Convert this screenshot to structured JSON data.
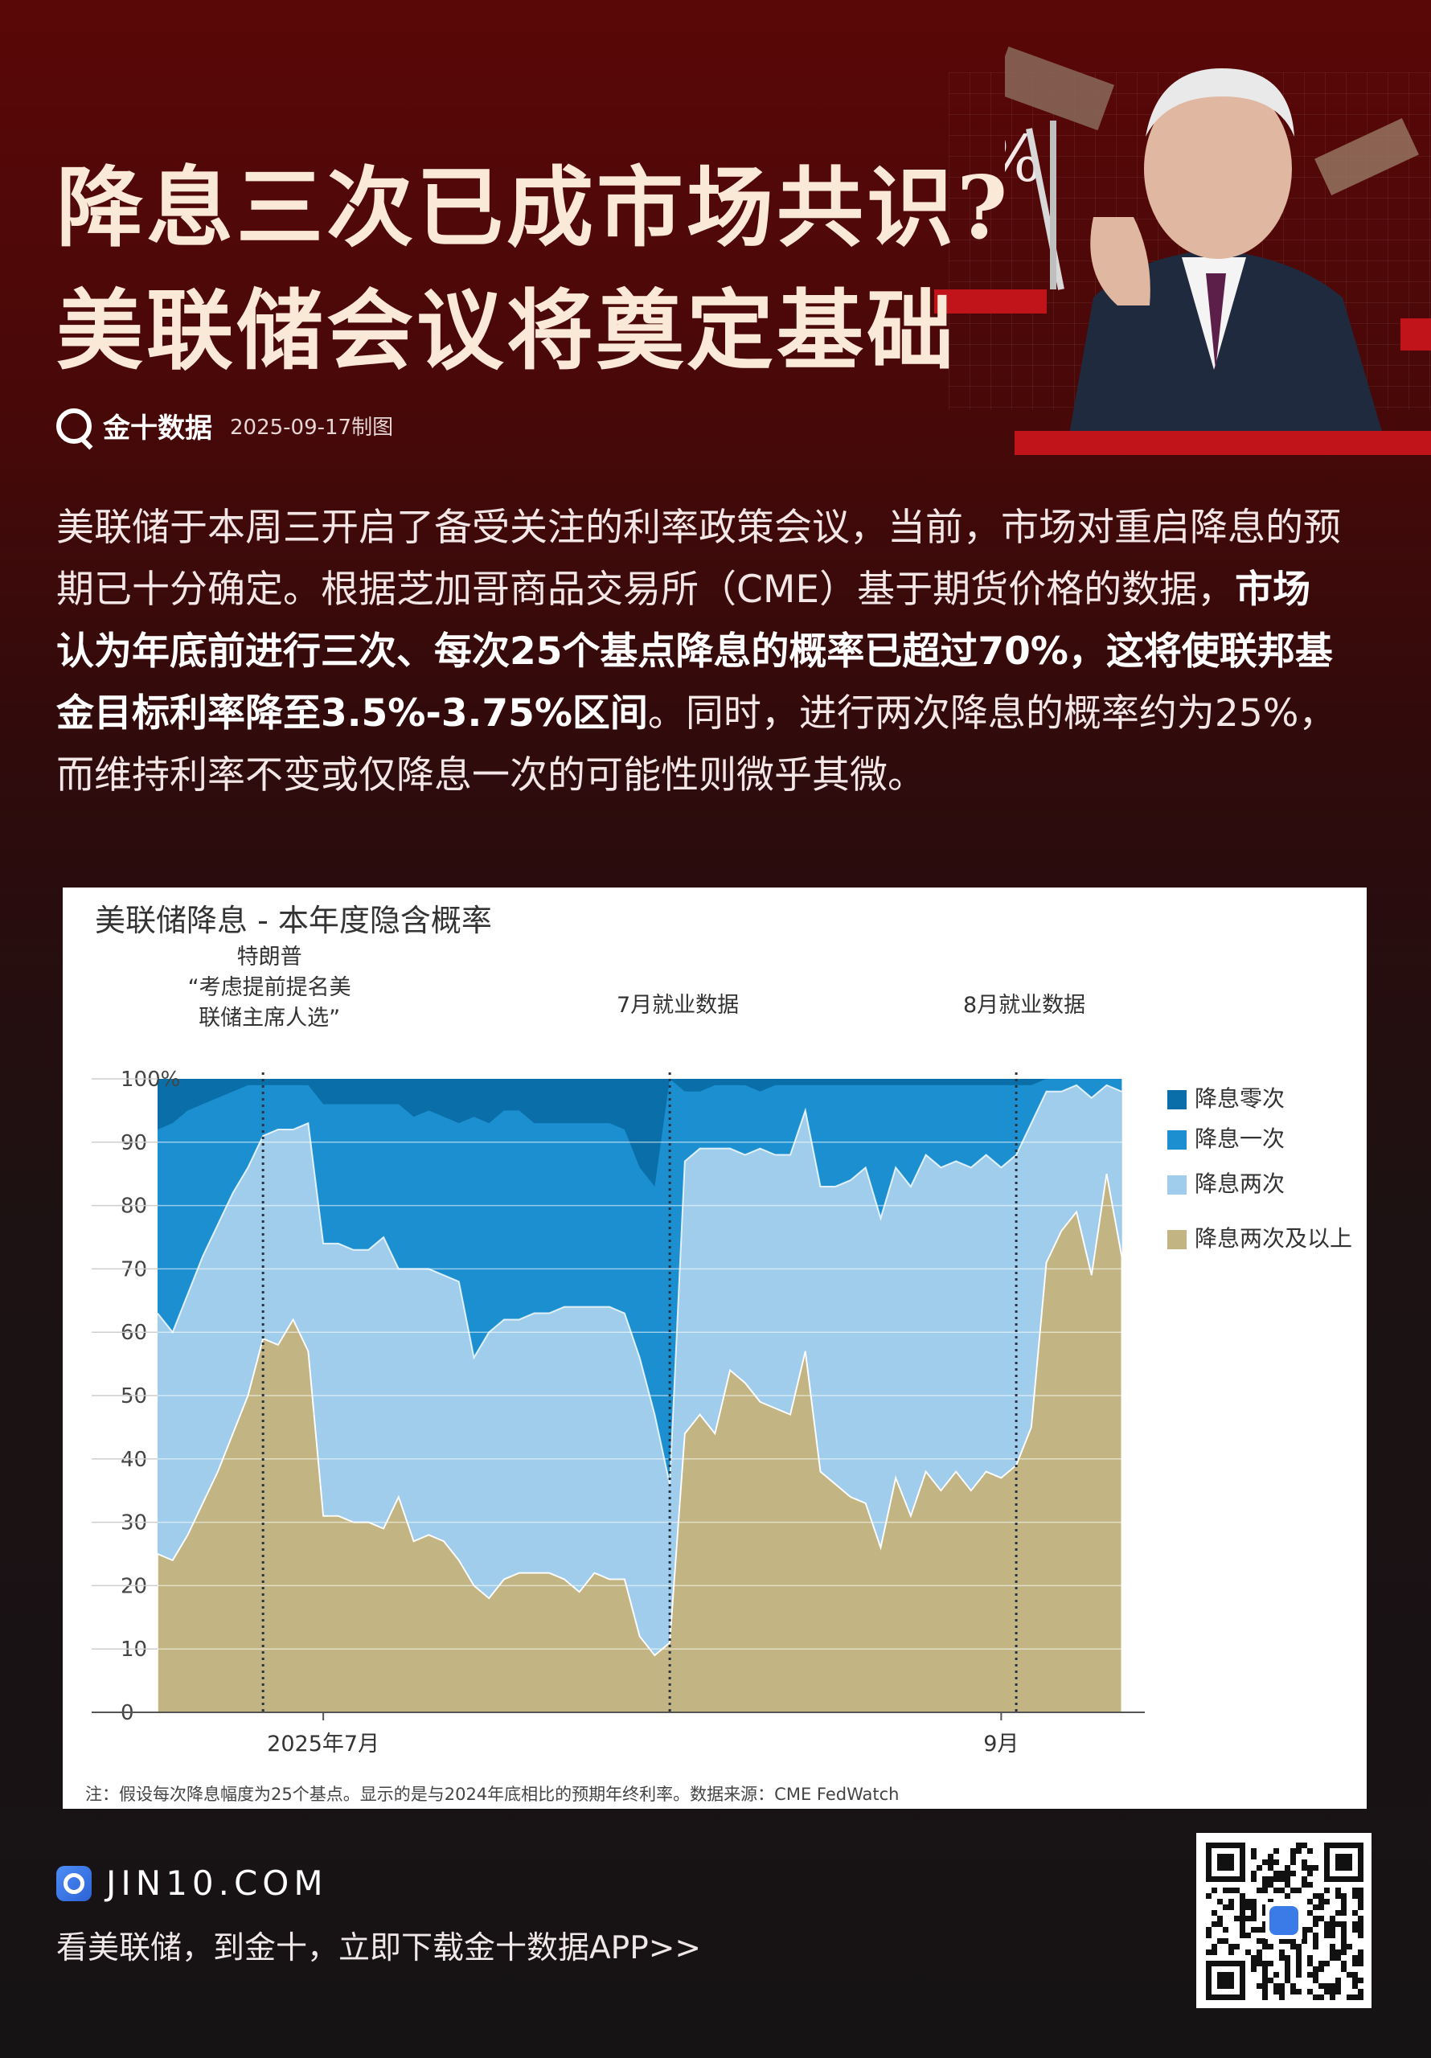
{
  "header": {
    "title_line1": "降息三次已成市场共识?",
    "title_line2": "美联储会议将奠定基础",
    "brand_name": "金十数据",
    "date": "2025-09-17制图"
  },
  "intro": {
    "part1": "美联储于本周三开启了备受关注的利率政策会议，当前，市场对重启降息的预期已十分确定。根据芝加哥商品交易所（CME）基于期货价格的数据，",
    "bold": "市场认为年底前进行三次、每次25个基点降息的概率已超过70%，这将使联邦基金目标利率降至3.5%-3.75%区间",
    "part2": "。同时，进行两次降息的概率约为25%，而维持利率不变或仅降息一次的可能性则微乎其微。"
  },
  "chart_data": {
    "type": "area",
    "title": "美联储降息 - 本年度隐含概率",
    "ylim": [
      0,
      100
    ],
    "yticks": [
      "0",
      "10",
      "20",
      "30",
      "40",
      "50",
      "60",
      "70",
      "80",
      "90",
      "100%"
    ],
    "xticks": [
      {
        "label": "2025年7月",
        "x": 11
      },
      {
        "label": "9月",
        "x": 56
      }
    ],
    "xlim": [
      0,
      65
    ],
    "legend": [
      "降息零次",
      "降息一次",
      "降息两次",
      "降息两次及以上"
    ],
    "legend_position": "right",
    "colors": [
      "#0a6fa8",
      "#1b8fd0",
      "#9fcdeb",
      "#c2b583"
    ],
    "annotations": [
      {
        "text_lines": [
          "特朗普",
          "“考虑提前提名美",
          "联储主席人选”"
        ],
        "x": 7
      },
      {
        "text_lines": [
          "7月就业数据"
        ],
        "x": 34
      },
      {
        "text_lines": [
          "8月就业数据"
        ],
        "x": 57
      }
    ],
    "x": [
      0,
      1,
      2,
      3,
      4,
      5,
      6,
      7,
      8,
      9,
      10,
      11,
      12,
      13,
      14,
      15,
      16,
      17,
      18,
      19,
      20,
      21,
      22,
      23,
      24,
      25,
      26,
      27,
      28,
      29,
      30,
      31,
      32,
      33,
      34,
      35,
      36,
      37,
      38,
      39,
      40,
      41,
      42,
      43,
      44,
      45,
      46,
      47,
      48,
      49,
      50,
      51,
      52,
      53,
      54,
      55,
      56,
      57,
      58,
      59,
      60,
      61,
      62,
      63,
      64
    ],
    "series": [
      {
        "name": "降息两次及以上",
        "values": [
          25,
          24,
          28,
          33,
          38,
          44,
          50,
          59,
          58,
          62,
          57,
          31,
          31,
          30,
          30,
          29,
          34,
          27,
          28,
          27,
          24,
          20,
          18,
          21,
          22,
          22,
          22,
          21,
          19,
          22,
          21,
          21,
          12,
          9,
          11,
          44,
          47,
          44,
          54,
          52,
          49,
          48,
          47,
          57,
          38,
          36,
          34,
          33,
          26,
          37,
          31,
          38,
          35,
          38,
          35,
          38,
          37,
          39,
          45,
          71,
          76,
          79,
          69,
          85,
          72
        ]
      },
      {
        "name": "降息两次",
        "values": [
          63,
          60,
          66,
          72,
          77,
          82,
          86,
          91,
          92,
          92,
          93,
          74,
          74,
          73,
          73,
          75,
          70,
          70,
          70,
          69,
          68,
          56,
          60,
          62,
          62,
          63,
          63,
          64,
          64,
          64,
          64,
          63,
          56,
          47,
          36,
          87,
          89,
          89,
          89,
          88,
          89,
          88,
          88,
          95,
          83,
          83,
          84,
          86,
          78,
          86,
          83,
          88,
          86,
          87,
          86,
          88,
          86,
          88,
          93,
          98,
          98,
          99,
          97,
          99,
          98
        ]
      },
      {
        "name": "降息一次",
        "values": [
          92,
          93,
          95,
          96,
          97,
          98,
          99,
          99,
          99,
          99,
          99,
          96,
          96,
          96,
          96,
          96,
          96,
          94,
          95,
          94,
          93,
          94,
          93,
          95,
          95,
          93,
          93,
          93,
          93,
          93,
          93,
          92,
          86,
          83,
          100,
          98,
          98,
          99,
          99,
          99,
          98,
          99,
          99,
          99,
          99,
          99,
          99,
          99,
          99,
          99,
          99,
          99,
          99,
          99,
          99,
          99,
          99,
          99,
          99,
          100,
          100,
          100,
          100,
          100,
          100
        ]
      },
      {
        "name": "降息零次",
        "values": [
          100,
          100,
          100,
          100,
          100,
          100,
          100,
          100,
          100,
          100,
          100,
          100,
          100,
          100,
          100,
          100,
          100,
          100,
          100,
          100,
          100,
          100,
          100,
          100,
          100,
          100,
          100,
          100,
          100,
          100,
          100,
          100,
          100,
          100,
          100,
          100,
          100,
          100,
          100,
          100,
          100,
          100,
          100,
          100,
          100,
          100,
          100,
          100,
          100,
          100,
          100,
          100,
          100,
          100,
          100,
          100,
          100,
          100,
          100,
          100,
          100,
          100,
          100,
          100,
          100
        ]
      }
    ],
    "note": "注：假设每次降息幅度为25个基点。显示的是与2024年底相比的预期年终利率。数据来源：CME FedWatch"
  },
  "footer": {
    "domain": "JIN10.COM",
    "cta": "看美联储，到金十，立即下载金十数据APP>>"
  }
}
